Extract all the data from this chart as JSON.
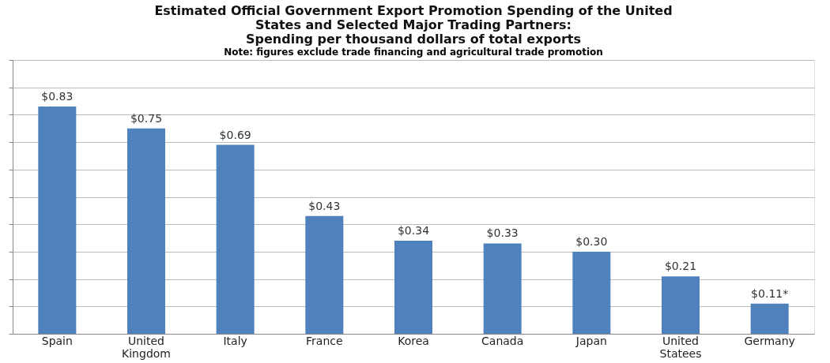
{
  "chart_data": {
    "type": "bar",
    "title": "Estimated Official Government Export Promotion Spending of the United States and Selected Major Trading Partners:",
    "subtitle": "Spending per thousand dollars of total exports",
    "annotations": [
      "Note: figures exclude trade financing and agricultural trade promotion"
    ],
    "categories": [
      "Spain",
      "United Kingdom",
      "Italy",
      "France",
      "Korea",
      "Canada",
      "Japan",
      "United Statees",
      "Germany"
    ],
    "values": [
      0.83,
      0.75,
      0.69,
      0.43,
      0.34,
      0.33,
      0.3,
      0.21,
      0.11
    ],
    "value_labels": [
      "$0.83",
      "$0.75",
      "$0.69",
      "$0.43",
      "$0.34",
      "$0.33",
      "$0.30",
      "$0.21",
      "$0.11*"
    ],
    "color": "#4f81bd",
    "ylim": [
      0,
      1
    ],
    "yticks": [
      {
        "value": 0,
        "label": null
      },
      {
        "value": 0.1,
        "label": null
      },
      {
        "value": 0.2,
        "label": null
      },
      {
        "value": 0.3,
        "label": null
      },
      {
        "value": 0.4,
        "label": null
      },
      {
        "value": 0.5,
        "label": null
      },
      {
        "value": 0.6,
        "label": null
      },
      {
        "value": 0.7,
        "label": null
      },
      {
        "value": 0.8,
        "label": null
      },
      {
        "value": 0.9,
        "label": null
      },
      {
        "value": 1.0,
        "label": null
      }
    ],
    "grid": "y",
    "tick_labels": "x"
  }
}
